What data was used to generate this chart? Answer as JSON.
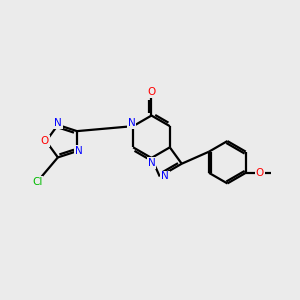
{
  "bg_color": "#ebebeb",
  "bond_color": "#000000",
  "n_color": "#0000ff",
  "o_color": "#ff0000",
  "cl_color": "#00bb00",
  "line_width": 1.6,
  "fig_size": [
    3.0,
    3.0
  ],
  "dpi": 100,
  "xlim": [
    0,
    10
  ],
  "ylim": [
    0,
    10
  ]
}
